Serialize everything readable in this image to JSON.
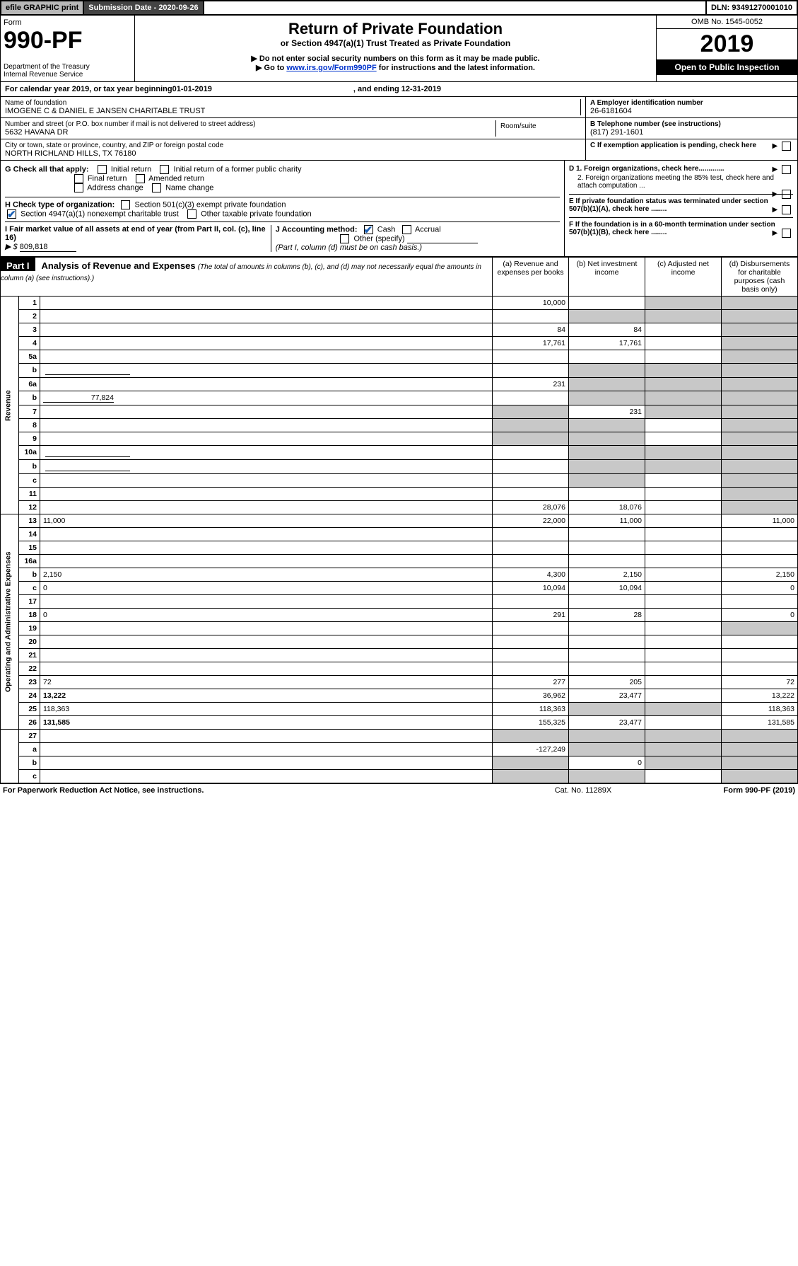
{
  "topbar": {
    "efile": "efile GRAPHIC print",
    "submission_label": "Submission Date - 2020-09-26",
    "dln": "DLN: 93491270001010"
  },
  "header": {
    "form_word": "Form",
    "form_num": "990-PF",
    "dept": "Department of the Treasury\nInternal Revenue Service",
    "title": "Return of Private Foundation",
    "subtitle": "or Section 4947(a)(1) Trust Treated as Private Foundation",
    "note1": "▶ Do not enter social security numbers on this form as it may be made public.",
    "note2_pre": "▶ Go to ",
    "note2_link": "www.irs.gov/Form990PF",
    "note2_post": " for instructions and the latest information.",
    "omb": "OMB No. 1545-0052",
    "year": "2019",
    "open": "Open to Public Inspection"
  },
  "cal": {
    "line_pre": "For calendar year 2019, or tax year beginning ",
    "begin": "01-01-2019",
    "end_pre": ", and ending ",
    "end": "12-31-2019"
  },
  "info": {
    "name_lbl": "Name of foundation",
    "name": "IMOGENE C & DANIEL E JANSEN CHARITABLE TRUST",
    "addr_lbl": "Number and street (or P.O. box number if mail is not delivered to street address)",
    "addr": "5632 HAVANA DR",
    "room_lbl": "Room/suite",
    "city_lbl": "City or town, state or province, country, and ZIP or foreign postal code",
    "city": "NORTH RICHLAND HILLS, TX  76180",
    "ein_lbl": "A Employer identification number",
    "ein": "26-6181604",
    "tel_lbl": "B Telephone number (see instructions)",
    "tel": "(817) 291-1601",
    "c_lbl": "C If exemption application is pending, check here",
    "d1": "D 1. Foreign organizations, check here.............",
    "d2": "2. Foreign organizations meeting the 85% test, check here and attach computation ...",
    "e": "E  If private foundation status was terminated under section 507(b)(1)(A), check here ........",
    "f": "F  If the foundation is in a 60-month termination under section 507(b)(1)(B), check here ........"
  },
  "g": {
    "label": "G Check all that apply:",
    "opts": [
      "Initial return",
      "Initial return of a former public charity",
      "Final return",
      "Amended return",
      "Address change",
      "Name change"
    ]
  },
  "h": {
    "label": "H Check type of organization:",
    "opt1": "Section 501(c)(3) exempt private foundation",
    "opt2": "Section 4947(a)(1) nonexempt charitable trust",
    "opt3": "Other taxable private foundation"
  },
  "i": {
    "label": "I Fair market value of all assets at end of year (from Part II, col. (c), line 16)",
    "val_lbl": "▶ $",
    "val": "809,818"
  },
  "j": {
    "label": "J Accounting method:",
    "cash": "Cash",
    "accrual": "Accrual",
    "other": "Other (specify)",
    "note": "(Part I, column (d) must be on cash basis.)"
  },
  "part1": {
    "hd": "Part I",
    "title": "Analysis of Revenue and Expenses",
    "note": "(The total of amounts in columns (b), (c), and (d) may not necessarily equal the amounts in column (a) (see instructions).)",
    "col_a": "(a)  Revenue and expenses per books",
    "col_b": "(b)  Net investment income",
    "col_c": "(c)  Adjusted net income",
    "col_d": "(d)  Disbursements for charitable purposes (cash basis only)"
  },
  "side_rev": "Revenue",
  "side_exp": "Operating and Administrative Expenses",
  "rows": [
    {
      "n": "1",
      "d": "",
      "a": "10,000",
      "b": "",
      "c": "",
      "shb": 0,
      "shc": 1,
      "shd": 1
    },
    {
      "n": "2",
      "d": "",
      "a": "",
      "b": "",
      "c": "",
      "shb": 1,
      "shc": 1,
      "shd": 1,
      "bold_not": 1
    },
    {
      "n": "3",
      "d": "",
      "a": "84",
      "b": "84",
      "c": "",
      "shb": 0,
      "shc": 0,
      "shd": 1
    },
    {
      "n": "4",
      "d": "",
      "a": "17,761",
      "b": "17,761",
      "c": "",
      "shb": 0,
      "shc": 0,
      "shd": 1
    },
    {
      "n": "5a",
      "d": "",
      "a": "",
      "b": "",
      "c": "",
      "shb": 0,
      "shc": 0,
      "shd": 1
    },
    {
      "n": "b",
      "d": "",
      "a": "",
      "b": "",
      "c": "",
      "shb": 1,
      "shc": 1,
      "shd": 1,
      "inline": 1
    },
    {
      "n": "6a",
      "d": "",
      "a": "231",
      "b": "",
      "c": "",
      "shb": 1,
      "shc": 1,
      "shd": 1
    },
    {
      "n": "b",
      "d": "",
      "a": "",
      "b": "",
      "c": "",
      "shb": 1,
      "shc": 1,
      "shd": 1,
      "inline_val": "77,824"
    },
    {
      "n": "7",
      "d": "",
      "a": "",
      "b": "231",
      "c": "",
      "sha": 1,
      "shc": 1,
      "shd": 1
    },
    {
      "n": "8",
      "d": "",
      "a": "",
      "b": "",
      "c": "",
      "sha": 1,
      "shb": 1,
      "shd": 1
    },
    {
      "n": "9",
      "d": "",
      "a": "",
      "b": "",
      "c": "",
      "sha": 1,
      "shb": 1,
      "shd": 1
    },
    {
      "n": "10a",
      "d": "",
      "a": "",
      "b": "",
      "c": "",
      "shb": 1,
      "shc": 1,
      "shd": 1,
      "inline": 1
    },
    {
      "n": "b",
      "d": "",
      "a": "",
      "b": "",
      "c": "",
      "shb": 1,
      "shc": 1,
      "shd": 1,
      "inline": 1
    },
    {
      "n": "c",
      "d": "",
      "a": "",
      "b": "",
      "c": "",
      "shb": 1,
      "shd": 1
    },
    {
      "n": "11",
      "d": "",
      "a": "",
      "b": "",
      "c": "",
      "shd": 1
    },
    {
      "n": "12",
      "d": "",
      "a": "28,076",
      "b": "18,076",
      "c": "",
      "shd": 1,
      "bold": 1
    }
  ],
  "exp_rows": [
    {
      "n": "13",
      "d": "11,000",
      "a": "22,000",
      "b": "11,000",
      "c": ""
    },
    {
      "n": "14",
      "d": "",
      "a": "",
      "b": "",
      "c": ""
    },
    {
      "n": "15",
      "d": "",
      "a": "",
      "b": "",
      "c": ""
    },
    {
      "n": "16a",
      "d": "",
      "a": "",
      "b": "",
      "c": ""
    },
    {
      "n": "b",
      "d": "2,150",
      "a": "4,300",
      "b": "2,150",
      "c": ""
    },
    {
      "n": "c",
      "d": "0",
      "a": "10,094",
      "b": "10,094",
      "c": ""
    },
    {
      "n": "17",
      "d": "",
      "a": "",
      "b": "",
      "c": ""
    },
    {
      "n": "18",
      "d": "0",
      "a": "291",
      "b": "28",
      "c": ""
    },
    {
      "n": "19",
      "d": "",
      "a": "",
      "b": "",
      "c": "",
      "shd": 1
    },
    {
      "n": "20",
      "d": "",
      "a": "",
      "b": "",
      "c": ""
    },
    {
      "n": "21",
      "d": "",
      "a": "",
      "b": "",
      "c": ""
    },
    {
      "n": "22",
      "d": "",
      "a": "",
      "b": "",
      "c": ""
    },
    {
      "n": "23",
      "d": "72",
      "a": "277",
      "b": "205",
      "c": ""
    },
    {
      "n": "24",
      "d": "13,222",
      "a": "36,962",
      "b": "23,477",
      "c": "",
      "bold": 1
    },
    {
      "n": "25",
      "d": "118,363",
      "a": "118,363",
      "b": "",
      "c": "",
      "shb": 1,
      "shc": 1
    },
    {
      "n": "26",
      "d": "131,585",
      "a": "155,325",
      "b": "23,477",
      "c": "",
      "bold": 1
    }
  ],
  "bottom_rows": [
    {
      "n": "27",
      "d": "",
      "a": "",
      "b": "",
      "c": "",
      "sha": 1,
      "shb": 1,
      "shc": 1,
      "shd": 1
    },
    {
      "n": "a",
      "d": "",
      "a": "-127,249",
      "b": "",
      "c": "",
      "shb": 1,
      "shc": 1,
      "shd": 1,
      "bold": 1
    },
    {
      "n": "b",
      "d": "",
      "a": "",
      "b": "0",
      "c": "",
      "sha": 1,
      "shc": 1,
      "shd": 1,
      "bold": 1
    },
    {
      "n": "c",
      "d": "",
      "a": "",
      "b": "",
      "c": "",
      "sha": 1,
      "shb": 1,
      "shd": 1,
      "bold": 1
    }
  ],
  "footer": {
    "left": "For Paperwork Reduction Act Notice, see instructions.",
    "mid": "Cat. No. 11289X",
    "right": "Form 990-PF (2019)"
  }
}
